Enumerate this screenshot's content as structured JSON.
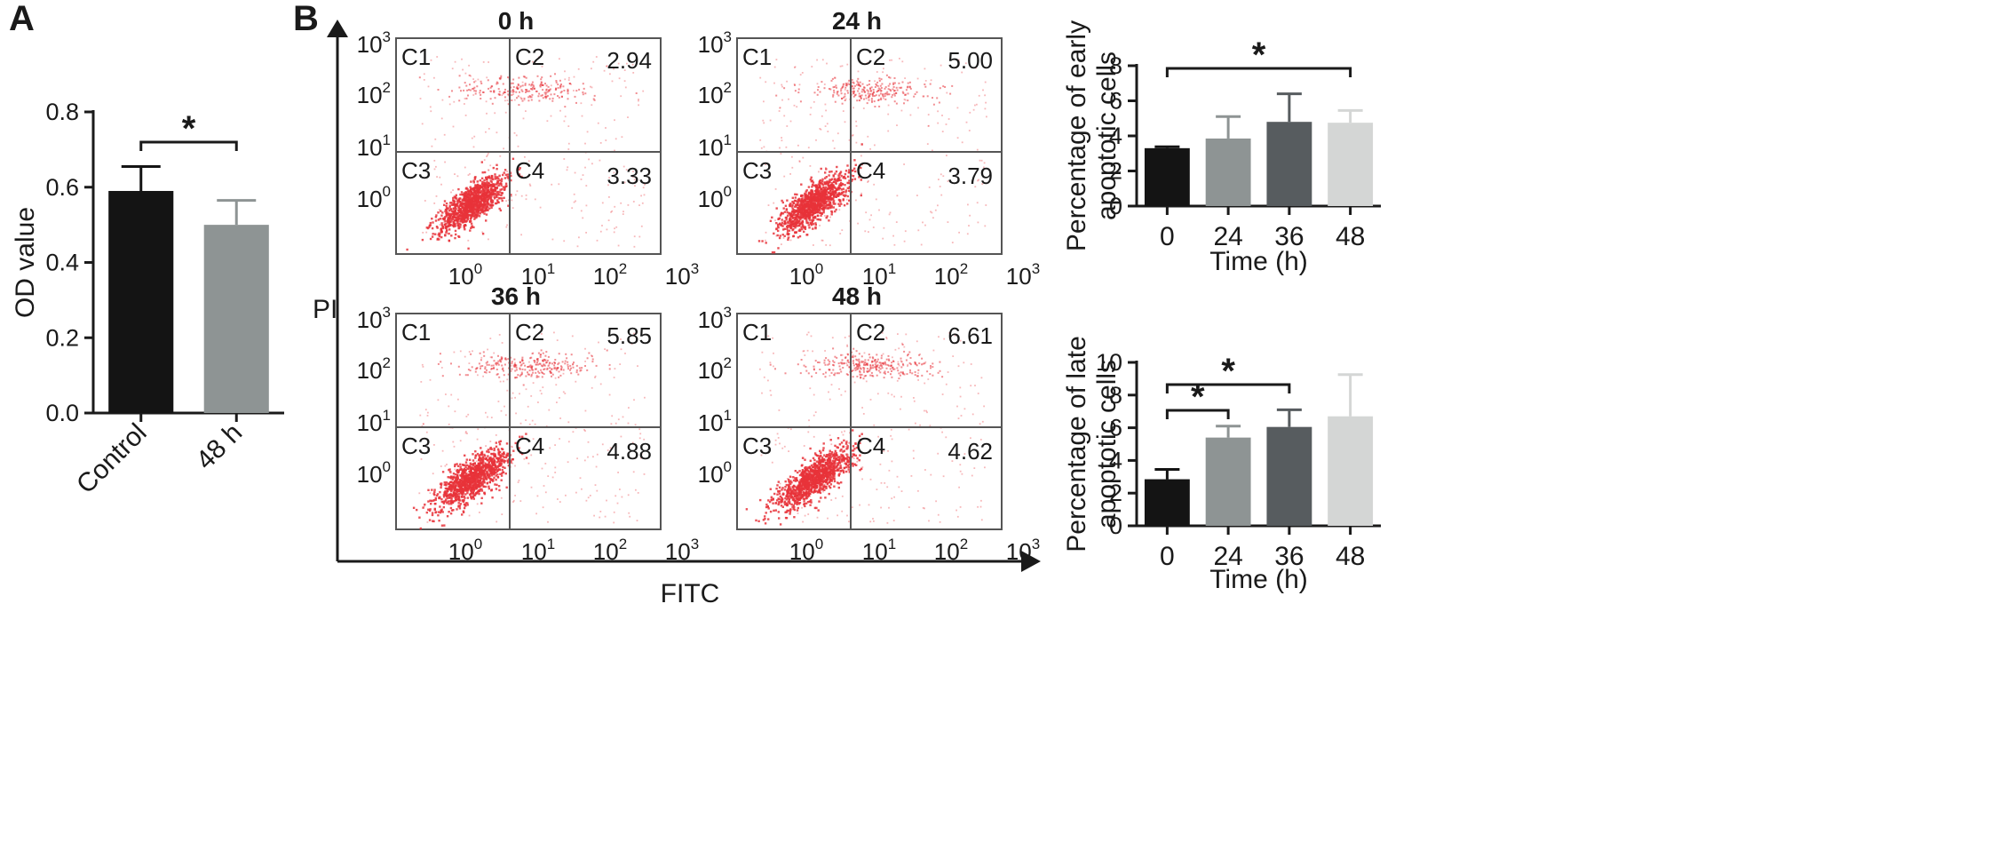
{
  "panels": {
    "a": {
      "letter": "A"
    },
    "b": {
      "letter": "B"
    }
  },
  "flow": {
    "y_axis_label": "PI",
    "x_axis_label": "FITC",
    "tick_labels": [
      "10",
      "10",
      "10",
      "10"
    ],
    "tick_exponents": [
      "0",
      "1",
      "2",
      "3"
    ],
    "quadrant_labels": [
      "C1",
      "C2",
      "C3",
      "C4"
    ],
    "dot_color": "#e8333a"
  },
  "colors": {
    "black": "#141414",
    "gray": "#8e9494",
    "dark_gray": "#575c5f",
    "light_gray": "#d4d6d5"
  },
  "chart_data": [
    {
      "id": "A",
      "type": "bar",
      "categories": [
        "Control",
        "48 h"
      ],
      "values": [
        0.59,
        0.5
      ],
      "errors": [
        0.065,
        0.065
      ],
      "colors": [
        "#141414",
        "#8e9494"
      ],
      "ylabel": "OD value",
      "xlabel": "",
      "ylim": [
        0,
        0.8
      ],
      "yticks": [
        "0.0",
        "0.2",
        "0.4",
        "0.6",
        "0.8"
      ],
      "significance": [
        {
          "from": 0,
          "to": 1,
          "label": "*"
        }
      ]
    },
    {
      "id": "B-flow",
      "type": "scatter",
      "plots": [
        {
          "title": "0 h",
          "C2": "2.94",
          "C4": "3.33"
        },
        {
          "title": "24 h",
          "C2": "5.00",
          "C4": "3.79"
        },
        {
          "title": "36 h",
          "C2": "5.85",
          "C4": "4.88"
        },
        {
          "title": "48 h",
          "C2": "6.61",
          "C4": "4.62"
        }
      ],
      "xlabel": "FITC",
      "ylabel": "PI"
    },
    {
      "id": "B-early",
      "type": "bar",
      "categories": [
        "0",
        "24",
        "36",
        "48"
      ],
      "values": [
        3.3,
        3.85,
        4.8,
        4.75
      ],
      "errors": [
        0.08,
        1.25,
        1.6,
        0.7
      ],
      "colors": [
        "#141414",
        "#8e9494",
        "#575c5f",
        "#d4d6d5"
      ],
      "ylabel": "Percentage of early apoptotic cells",
      "ylabel_lines": [
        "Percentage of early",
        "apoptotic cells"
      ],
      "xlabel": "Time (h)",
      "ylim": [
        0,
        8
      ],
      "yticks": [
        "0",
        "2",
        "4",
        "6",
        "8"
      ],
      "significance": [
        {
          "from": 0,
          "to": 3,
          "label": "*"
        }
      ]
    },
    {
      "id": "B-late",
      "type": "bar",
      "categories": [
        "0",
        "24",
        "36",
        "48"
      ],
      "values": [
        2.85,
        5.4,
        6.05,
        6.7
      ],
      "errors": [
        0.6,
        0.7,
        1.05,
        2.55
      ],
      "colors": [
        "#141414",
        "#8e9494",
        "#575c5f",
        "#d4d6d5"
      ],
      "ylabel": "Percentage of late apoptotic cells",
      "ylabel_lines": [
        "Percentage of late",
        "apoptotic cells"
      ],
      "xlabel": "Time (h)",
      "ylim": [
        0,
        10
      ],
      "yticks": [
        "0",
        "2",
        "4",
        "6",
        "8",
        "10"
      ],
      "significance": [
        {
          "from": 0,
          "to": 1,
          "label": "*"
        },
        {
          "from": 0,
          "to": 2,
          "label": "*"
        }
      ]
    }
  ]
}
